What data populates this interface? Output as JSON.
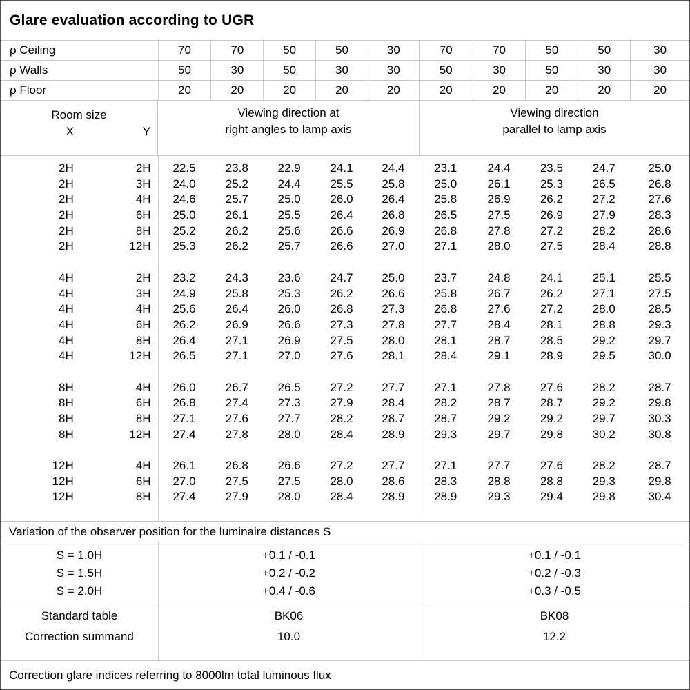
{
  "title": "Glare evaluation according to UGR",
  "reflectance_rows": [
    {
      "label": "ρ Ceiling",
      "values": [
        "70",
        "70",
        "50",
        "50",
        "30",
        "70",
        "70",
        "50",
        "50",
        "30"
      ]
    },
    {
      "label": "ρ Walls",
      "values": [
        "50",
        "30",
        "50",
        "30",
        "30",
        "50",
        "30",
        "50",
        "30",
        "30"
      ]
    },
    {
      "label": "ρ Floor",
      "values": [
        "20",
        "20",
        "20",
        "20",
        "20",
        "20",
        "20",
        "20",
        "20",
        "20"
      ]
    }
  ],
  "room_header": {
    "title": "Room size",
    "x": "X",
    "y": "Y"
  },
  "group_headers": {
    "left": [
      "Viewing direction at",
      "right angles to lamp axis"
    ],
    "right": [
      "Viewing direction",
      "parallel to lamp axis"
    ]
  },
  "ugr_table": {
    "blocks": [
      {
        "rows": [
          {
            "x": "2H",
            "y": "2H",
            "values": [
              "22.5",
              "23.8",
              "22.9",
              "24.1",
              "24.4",
              "23.1",
              "24.4",
              "23.5",
              "24.7",
              "25.0"
            ]
          },
          {
            "x": "2H",
            "y": "3H",
            "values": [
              "24.0",
              "25.2",
              "24.4",
              "25.5",
              "25.8",
              "25.0",
              "26.1",
              "25.3",
              "26.5",
              "26.8"
            ]
          },
          {
            "x": "2H",
            "y": "4H",
            "values": [
              "24.6",
              "25.7",
              "25.0",
              "26.0",
              "26.4",
              "25.8",
              "26.9",
              "26.2",
              "27.2",
              "27.6"
            ]
          },
          {
            "x": "2H",
            "y": "6H",
            "values": [
              "25.0",
              "26.1",
              "25.5",
              "26.4",
              "26.8",
              "26.5",
              "27.5",
              "26.9",
              "27.9",
              "28.3"
            ]
          },
          {
            "x": "2H",
            "y": "8H",
            "values": [
              "25.2",
              "26.2",
              "25.6",
              "26.6",
              "26.9",
              "26.8",
              "27.8",
              "27.2",
              "28.2",
              "28.6"
            ]
          },
          {
            "x": "2H",
            "y": "12H",
            "values": [
              "25.3",
              "26.2",
              "25.7",
              "26.6",
              "27.0",
              "27.1",
              "28.0",
              "27.5",
              "28.4",
              "28.8"
            ]
          }
        ]
      },
      {
        "rows": [
          {
            "x": "4H",
            "y": "2H",
            "values": [
              "23.2",
              "24.3",
              "23.6",
              "24.7",
              "25.0",
              "23.7",
              "24.8",
              "24.1",
              "25.1",
              "25.5"
            ]
          },
          {
            "x": "4H",
            "y": "3H",
            "values": [
              "24.9",
              "25.8",
              "25.3",
              "26.2",
              "26.6",
              "25.8",
              "26.7",
              "26.2",
              "27.1",
              "27.5"
            ]
          },
          {
            "x": "4H",
            "y": "4H",
            "values": [
              "25.6",
              "26.4",
              "26.0",
              "26.8",
              "27.3",
              "26.8",
              "27.6",
              "27.2",
              "28.0",
              "28.5"
            ]
          },
          {
            "x": "4H",
            "y": "6H",
            "values": [
              "26.2",
              "26.9",
              "26.6",
              "27.3",
              "27.8",
              "27.7",
              "28.4",
              "28.1",
              "28.8",
              "29.3"
            ]
          },
          {
            "x": "4H",
            "y": "8H",
            "values": [
              "26.4",
              "27.1",
              "26.9",
              "27.5",
              "28.0",
              "28.1",
              "28.7",
              "28.5",
              "29.2",
              "29.7"
            ]
          },
          {
            "x": "4H",
            "y": "12H",
            "values": [
              "26.5",
              "27.1",
              "27.0",
              "27.6",
              "28.1",
              "28.4",
              "29.1",
              "28.9",
              "29.5",
              "30.0"
            ]
          }
        ]
      },
      {
        "rows": [
          {
            "x": "8H",
            "y": "4H",
            "values": [
              "26.0",
              "26.7",
              "26.5",
              "27.2",
              "27.7",
              "27.1",
              "27.8",
              "27.6",
              "28.2",
              "28.7"
            ]
          },
          {
            "x": "8H",
            "y": "6H",
            "values": [
              "26.8",
              "27.4",
              "27.3",
              "27.9",
              "28.4",
              "28.2",
              "28.7",
              "28.7",
              "29.2",
              "29.8"
            ]
          },
          {
            "x": "8H",
            "y": "8H",
            "values": [
              "27.1",
              "27.6",
              "27.7",
              "28.2",
              "28.7",
              "28.7",
              "29.2",
              "29.2",
              "29.7",
              "30.3"
            ]
          },
          {
            "x": "8H",
            "y": "12H",
            "values": [
              "27.4",
              "27.8",
              "28.0",
              "28.4",
              "28.9",
              "29.3",
              "29.7",
              "29.8",
              "30.2",
              "30.8"
            ]
          }
        ]
      },
      {
        "rows": [
          {
            "x": "12H",
            "y": "4H",
            "values": [
              "26.1",
              "26.8",
              "26.6",
              "27.2",
              "27.7",
              "27.1",
              "27.7",
              "27.6",
              "28.2",
              "28.7"
            ]
          },
          {
            "x": "12H",
            "y": "6H",
            "values": [
              "27.0",
              "27.5",
              "27.5",
              "28.0",
              "28.6",
              "28.3",
              "28.8",
              "28.8",
              "29.3",
              "29.8"
            ]
          },
          {
            "x": "12H",
            "y": "8H",
            "values": [
              "27.4",
              "27.9",
              "28.0",
              "28.4",
              "28.9",
              "28.9",
              "29.3",
              "29.4",
              "29.8",
              "30.4"
            ]
          }
        ]
      }
    ]
  },
  "variation_note": "Variation of the observer position for the luminaire distances S",
  "variation_rows": [
    {
      "s": "S = 1.0H",
      "left": "+0.1 / -0.1",
      "right": "+0.1 / -0.1"
    },
    {
      "s": "S = 1.5H",
      "left": "+0.2 / -0.2",
      "right": "+0.2 / -0.3"
    },
    {
      "s": "S = 2.0H",
      "left": "+0.4 / -0.6",
      "right": "+0.3 / -0.5"
    }
  ],
  "standard_rows": [
    {
      "label": "Standard table",
      "left": "BK06",
      "right": "BK08"
    },
    {
      "label": "Correction summand",
      "left": "10.0",
      "right": "12.2"
    }
  ],
  "footer_note": "Correction glare indices referring to 8000lm total luminous flux",
  "colors": {
    "grid_line": "#c9c9c9",
    "outer_border": "#565656",
    "text": "#000000",
    "background": "#ffffff"
  }
}
